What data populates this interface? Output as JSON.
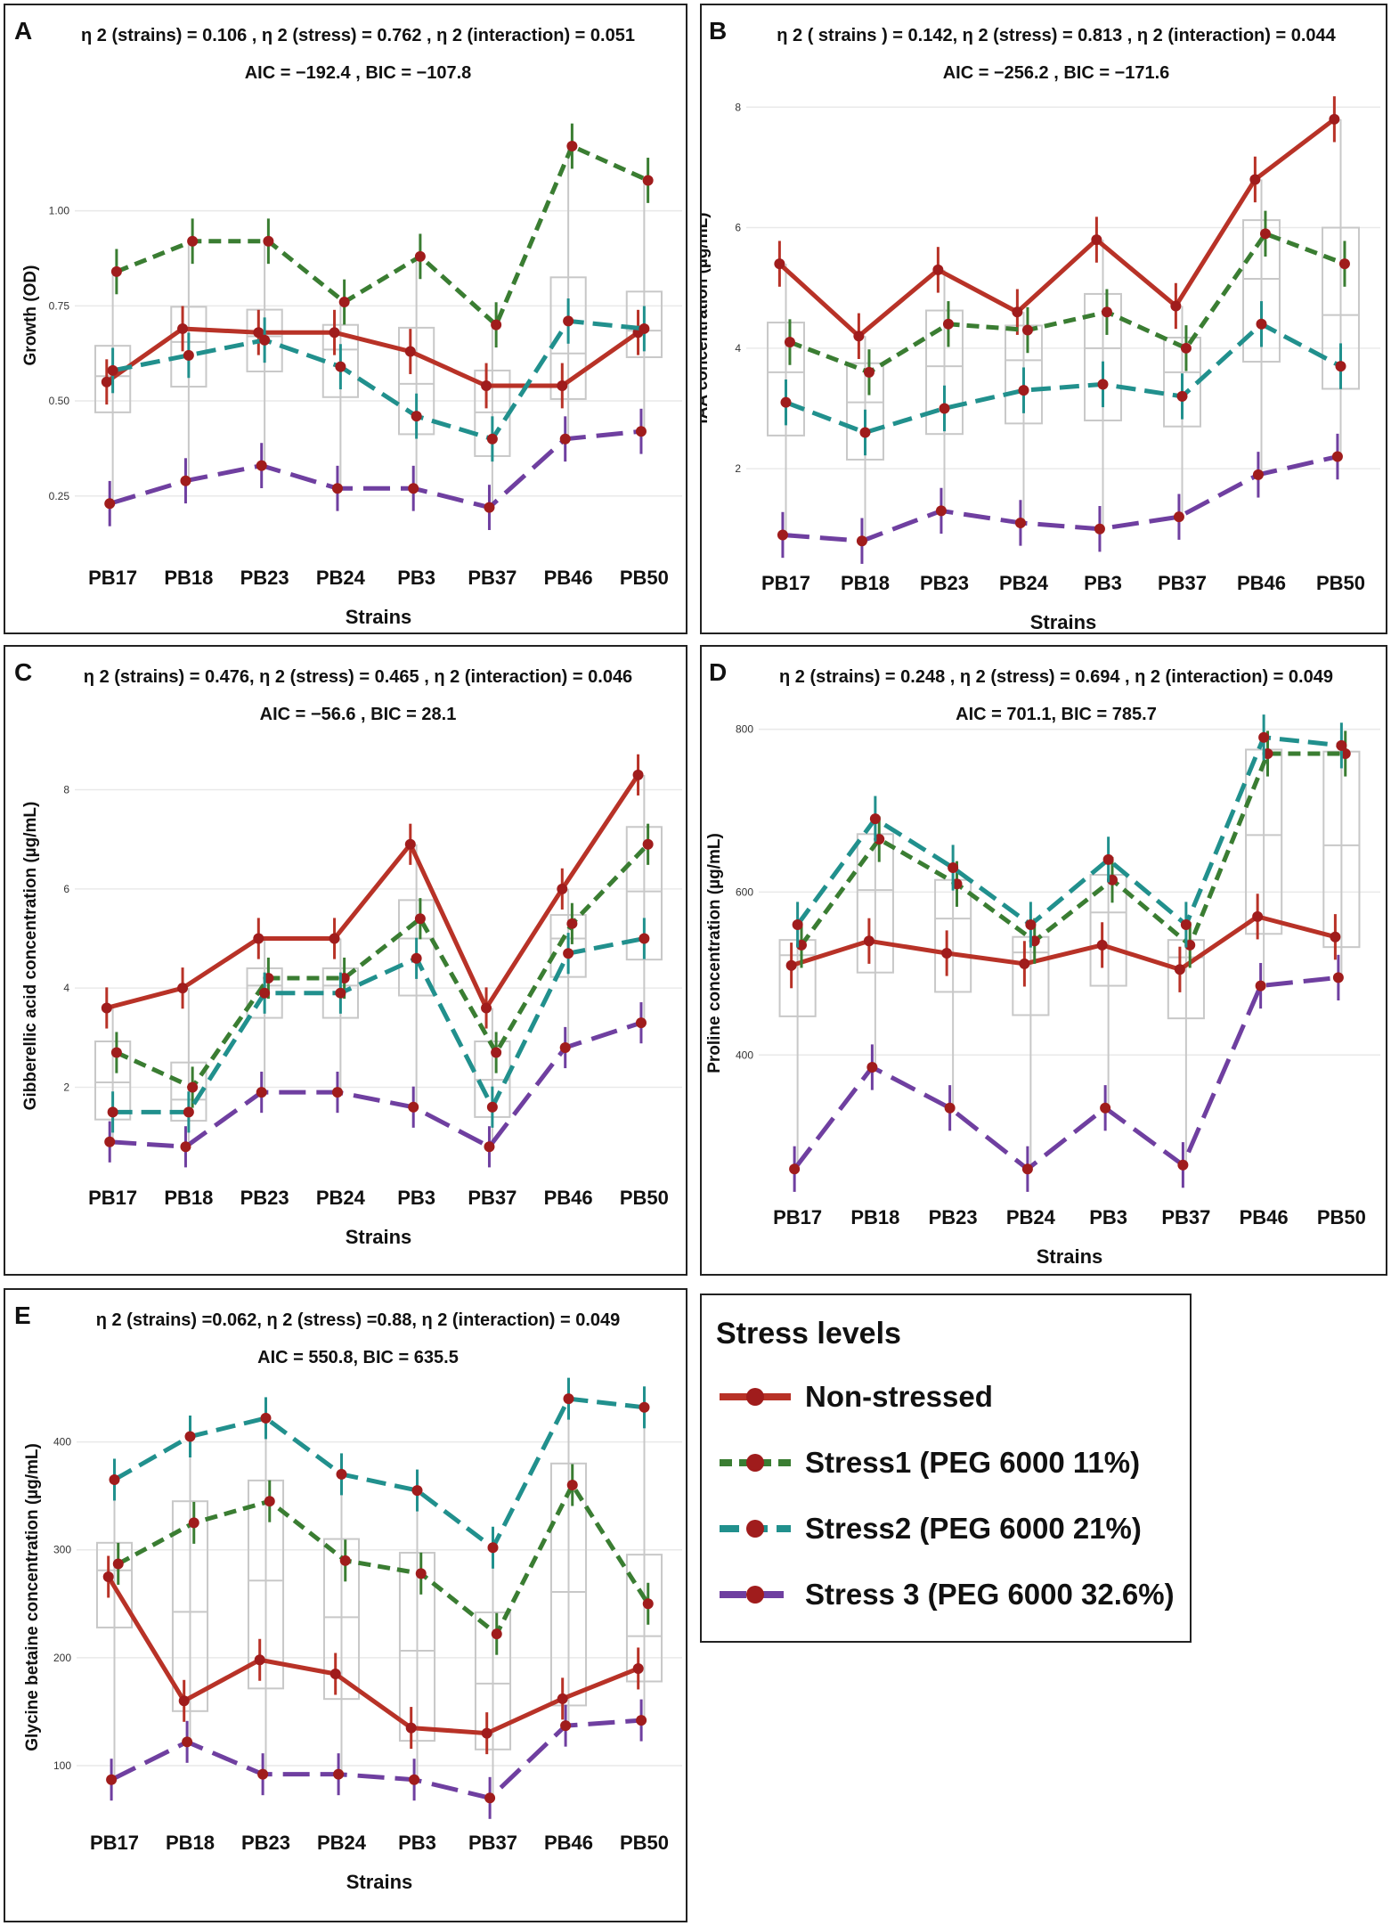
{
  "colors": {
    "non_stressed": "#b83227",
    "stress1": "#3a7d32",
    "stress2": "#21908d",
    "stress3": "#6f3fa0",
    "mean_dot": "#a01c1c",
    "box": "#c8c8c8",
    "grid": "#e9e9e9"
  },
  "legend": {
    "title": "Stress levels",
    "items": [
      {
        "label": "Non-stressed",
        "series": "non_stressed"
      },
      {
        "label": "Stress1 (PEG 6000 11%)",
        "series": "stress1"
      },
      {
        "label": "Stress2 (PEG 6000 21%)",
        "series": "stress2"
      },
      {
        "label": "Stress 3 (PEG 6000 32.6%)",
        "series": "stress3"
      }
    ]
  },
  "chart_data": [
    {
      "id": "A",
      "type": "line",
      "stats_line1": "η 2 (strains) = 0.106 , η 2 (stress) = 0.762 , η 2 (interaction) = 0.051",
      "stats_line2": "AIC = −192.4 , BIC = −107.8",
      "xlabel": "Strains",
      "ylabel": "Growth (OD)",
      "ylim": [
        0.13,
        1.32
      ],
      "yticks": [
        0.25,
        0.5,
        0.75,
        1.0
      ],
      "ytick_labels": [
        "0.25",
        "0.50",
        "0.75",
        "1.00"
      ],
      "categories": [
        "PB17",
        "PB18",
        "PB23",
        "PB24",
        "PB3",
        "PB37",
        "PB46",
        "PB50"
      ],
      "series": [
        {
          "name": "Non-stressed",
          "key": "non_stressed",
          "values": [
            0.55,
            0.69,
            0.68,
            0.68,
            0.63,
            0.54,
            0.54,
            0.68
          ]
        },
        {
          "name": "Stress1 (PEG 6000 11%)",
          "key": "stress1",
          "values": [
            0.84,
            0.92,
            0.92,
            0.76,
            0.88,
            0.7,
            1.17,
            1.08
          ]
        },
        {
          "name": "Stress2 (PEG 6000 21%)",
          "key": "stress2",
          "values": [
            0.58,
            0.62,
            0.66,
            0.59,
            0.46,
            0.4,
            0.71,
            0.69
          ]
        },
        {
          "name": "Stress 3 (PEG 6000 32.6%)",
          "key": "stress3",
          "values": [
            0.23,
            0.29,
            0.33,
            0.27,
            0.27,
            0.22,
            0.4,
            0.42
          ]
        }
      ]
    },
    {
      "id": "B",
      "type": "line",
      "stats_line1": "η 2 ( strains ) = 0.142, η 2 (stress) = 0.813 , η 2 (interaction) = 0.044",
      "stats_line2": "AIC = −256.2 , BIC = −171.6",
      "xlabel": "Strains",
      "ylabel": "IAA concentration (µg/mL)",
      "ylim": [
        0.7,
        8.3
      ],
      "yticks": [
        2,
        4,
        6,
        8
      ],
      "ytick_labels": [
        "2",
        "4",
        "6",
        "8"
      ],
      "categories": [
        "PB17",
        "PB18",
        "PB23",
        "PB24",
        "PB3",
        "PB37",
        "PB46",
        "PB50"
      ],
      "series": [
        {
          "name": "Non-stressed",
          "key": "non_stressed",
          "values": [
            5.4,
            4.2,
            5.3,
            4.6,
            5.8,
            4.7,
            6.8,
            7.8
          ]
        },
        {
          "name": "Stress1 (PEG 6000 11%)",
          "key": "stress1",
          "values": [
            4.1,
            3.6,
            4.4,
            4.3,
            4.6,
            4.0,
            5.9,
            5.4
          ]
        },
        {
          "name": "Stress2 (PEG 6000 21%)",
          "key": "stress2",
          "values": [
            3.1,
            2.6,
            3.0,
            3.3,
            3.4,
            3.2,
            4.4,
            3.7
          ]
        },
        {
          "name": "Stress 3 (PEG 6000 32.6%)",
          "key": "stress3",
          "values": [
            0.9,
            0.8,
            1.3,
            1.1,
            1.0,
            1.2,
            1.9,
            2.2
          ]
        }
      ]
    },
    {
      "id": "C",
      "type": "line",
      "stats_line1": "η 2 (strains) = 0.476, η 2 (stress) = 0.465 , η 2 (interaction) = 0.046",
      "stats_line2": "AIC = −56.6 , BIC = 28.1",
      "xlabel": "Strains",
      "ylabel": "Gibberellic acid concentration (µg/mL)",
      "ylim": [
        0.5,
        8.8
      ],
      "yticks": [
        2,
        4,
        6,
        8
      ],
      "ytick_labels": [
        "2",
        "4",
        "6",
        "8"
      ],
      "categories": [
        "PB17",
        "PB18",
        "PB23",
        "PB24",
        "PB3",
        "PB37",
        "PB46",
        "PB50"
      ],
      "series": [
        {
          "name": "Non-stressed",
          "key": "non_stressed",
          "values": [
            3.6,
            4.0,
            5.0,
            5.0,
            6.9,
            3.6,
            6.0,
            8.3
          ]
        },
        {
          "name": "Stress1 (PEG 6000 11%)",
          "key": "stress1",
          "values": [
            2.7,
            2.0,
            4.2,
            4.2,
            5.4,
            2.7,
            5.3,
            6.9
          ]
        },
        {
          "name": "Stress2 (PEG 6000 21%)",
          "key": "stress2",
          "values": [
            1.5,
            1.5,
            3.9,
            3.9,
            4.6,
            1.6,
            4.7,
            5.0
          ]
        },
        {
          "name": "Stress 3 (PEG 6000 32.6%)",
          "key": "stress3",
          "values": [
            0.9,
            0.8,
            1.9,
            1.9,
            1.6,
            0.8,
            2.8,
            3.3
          ]
        }
      ]
    },
    {
      "id": "D",
      "type": "line",
      "stats_line1": "η 2 (strains) = 0.248 , η 2 (stress) = 0.694 , η 2 (interaction) = 0.049",
      "stats_line2": "AIC = 701.1, BIC = 785.7",
      "xlabel": "Strains",
      "ylabel": "Proline concentration (µg/mL)",
      "ylim": [
        245,
        805
      ],
      "yticks": [
        400,
        600,
        800
      ],
      "ytick_labels": [
        "400",
        "600",
        "800"
      ],
      "categories": [
        "PB17",
        "PB18",
        "PB23",
        "PB24",
        "PB3",
        "PB37",
        "PB46",
        "PB50"
      ],
      "series": [
        {
          "name": "Non-stressed",
          "key": "non_stressed",
          "values": [
            510,
            540,
            525,
            512,
            535,
            505,
            570,
            545
          ]
        },
        {
          "name": "Stress1 (PEG 6000 11%)",
          "key": "stress1",
          "values": [
            535,
            665,
            610,
            540,
            615,
            535,
            770,
            770
          ]
        },
        {
          "name": "Stress2 (PEG 6000 21%)",
          "key": "stress2",
          "values": [
            560,
            690,
            630,
            560,
            640,
            560,
            790,
            780
          ]
        },
        {
          "name": "Stress 3 (PEG 6000 32.6%)",
          "key": "stress3",
          "values": [
            260,
            385,
            335,
            260,
            335,
            265,
            485,
            495
          ]
        }
      ]
    },
    {
      "id": "E",
      "type": "line",
      "stats_line1": "η 2 (strains) =0.062, η 2 (stress) =0.88, η 2 (interaction) = 0.049",
      "stats_line2": "AIC = 550.8, BIC = 635.5",
      "xlabel": "Strains",
      "ylabel": "Glycine betaine concentration (µg/mL)",
      "ylim": [
        62,
        450
      ],
      "yticks": [
        100,
        200,
        300,
        400
      ],
      "ytick_labels": [
        "100",
        "200",
        "300",
        "400"
      ],
      "categories": [
        "PB17",
        "PB18",
        "PB23",
        "PB24",
        "PB3",
        "PB37",
        "PB46",
        "PB50"
      ],
      "series": [
        {
          "name": "Non-stressed",
          "key": "non_stressed",
          "values": [
            275,
            160,
            198,
            185,
            135,
            130,
            162,
            190
          ]
        },
        {
          "name": "Stress1 (PEG 6000 11%)",
          "key": "stress1",
          "values": [
            287,
            325,
            345,
            290,
            278,
            222,
            360,
            250
          ]
        },
        {
          "name": "Stress2 (PEG 6000 21%)",
          "key": "stress2",
          "values": [
            365,
            405,
            422,
            370,
            355,
            302,
            440,
            432
          ]
        },
        {
          "name": "Stress 3 (PEG 6000 32.6%)",
          "key": "stress3",
          "values": [
            87,
            122,
            92,
            92,
            87,
            70,
            137,
            142
          ]
        }
      ]
    }
  ]
}
